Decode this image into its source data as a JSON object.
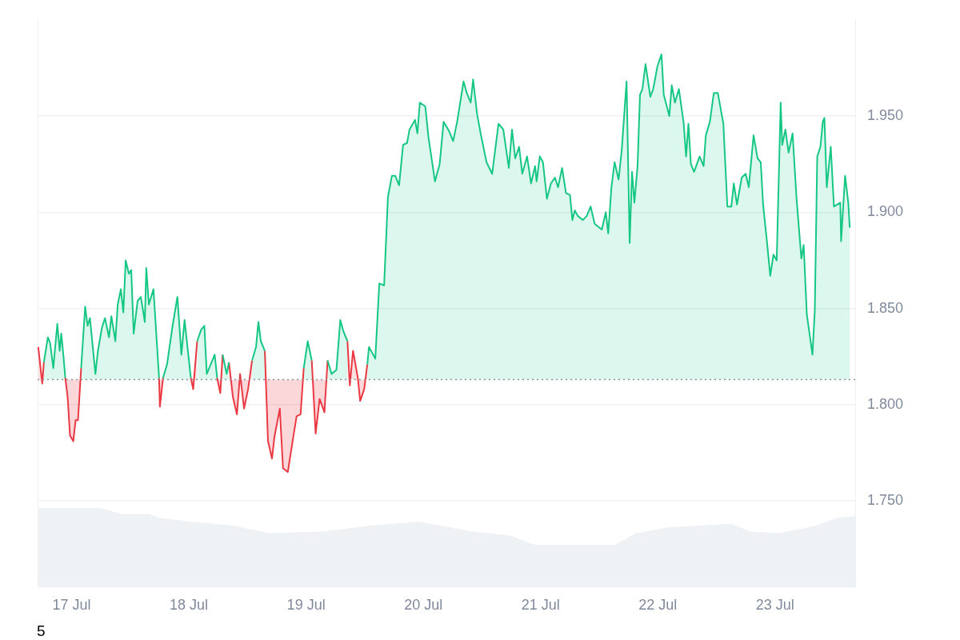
{
  "chart_data": {
    "type": "area",
    "xlim": [
      "--07-16T17:02",
      "--07-23T16:34"
    ],
    "xticks": [
      {
        "value": "--07-17",
        "label": "17 Jul"
      },
      {
        "value": "--07-18",
        "label": "18 Jul"
      },
      {
        "value": "--07-19",
        "label": "19 Jul"
      },
      {
        "value": "--07-20",
        "label": "20 Jul"
      },
      {
        "value": "--07-21",
        "label": "21 Jul"
      },
      {
        "value": "--07-22",
        "label": "22 Jul"
      },
      {
        "value": "--07-23",
        "label": "23 Jul"
      }
    ],
    "ylim": [
      1.705,
      2.0
    ],
    "yticks": [
      {
        "value": 1.75,
        "label": "1.750"
      },
      {
        "value": 1.8,
        "label": "1.800"
      },
      {
        "value": 1.85,
        "label": "1.850"
      },
      {
        "value": 1.9,
        "label": "1.900"
      },
      {
        "value": 1.95,
        "label": "1.950"
      }
    ],
    "grid": "y",
    "legend": false,
    "ref_lines": [
      {
        "axis": "y",
        "value": 1.813,
        "color": "#8a8f99",
        "line_style": "dotted"
      }
    ],
    "annotations": [
      "5"
    ],
    "x": [
      "--07-16T17:10",
      "--07-16T17:59",
      "--07-16T18:19",
      "--07-16T19:08",
      "--07-16T19:36",
      "--07-16T20:15",
      "--07-16T21:04",
      "--07-16T21:33",
      "--07-16T21:53",
      "--07-16T22:22",
      "--07-16T22:42",
      "--07-16T23:11",
      "--07-16T23:40",
      "--07-17T00:20",
      "--07-17T00:49",
      "--07-17T01:18",
      "--07-17T01:57",
      "--07-17T02:46",
      "--07-17T03:16",
      "--07-17T03:45",
      "--07-17T04:52",
      "--07-17T05:23",
      "--07-17T06:12",
      "--07-17T06:50",
      "--07-17T07:39",
      "--07-17T08:08",
      "--07-17T08:57",
      "--07-17T09:26",
      "--07-17T10:05",
      "--07-17T10:35",
      "--07-17T11:04",
      "--07-17T11:43",
      "--07-17T12:12",
      "--07-17T12:42",
      "--07-17T13:31",
      "--07-17T14:10",
      "--07-17T14:59",
      "--07-17T15:17",
      "--07-17T15:48",
      "--07-17T16:45",
      "--07-17T17:54",
      "--07-17T18:04",
      "--07-17T18:43",
      "--07-17T19:32",
      "--07-17T20:40",
      "--07-17T21:39",
      "--07-17T22:28",
      "--07-17T23:07",
      "--07-18T00:24",
      "--07-18T00:53",
      "--07-18T01:42",
      "--07-18T02:31",
      "--07-18T03:10",
      "--07-18T03:40",
      "--07-18T04:48",
      "--07-18T05:17",
      "--07-18T05:47",
      "--07-18T06:26",
      "--07-18T06:55",
      "--07-18T07:44",
      "--07-18T08:12",
      "--07-18T09:01",
      "--07-18T09:50",
      "--07-18T10:29",
      "--07-18T11:18",
      "--07-18T12:07",
      "--07-18T12:56",
      "--07-18T13:45",
      "--07-18T14:14",
      "--07-18T14:44",
      "--07-18T15:33",
      "--07-18T16:12",
      "--07-18T17:01",
      "--07-18T17:30",
      "--07-18T18:37",
      "--07-18T19:16",
      "--07-18T20:15",
      "--07-18T21:14",
      "--07-18T22:03",
      "--07-18T22:52",
      "--07-18T23:31",
      "--07-19T00:20",
      "--07-19T01:09",
      "--07-19T01:57",
      "--07-19T02:46",
      "--07-19T03:45",
      "--07-19T04:24",
      "--07-19T05:12",
      "--07-19T06:12",
      "--07-19T07:00",
      "--07-19T07:39",
      "--07-19T08:28",
      "--07-19T08:57",
      "--07-19T09:36",
      "--07-19T10:35",
      "--07-19T11:04",
      "--07-19T11:53",
      "--07-19T12:32",
      "--07-19T12:52",
      "--07-19T14:10",
      "--07-19T14:59",
      "--07-19T15:58",
      "--07-19T16:45",
      "--07-19T17:34",
      "--07-19T18:14",
      "--07-19T19:02",
      "--07-19T19:51",
      "--07-19T20:40",
      "--07-19T21:10",
      "--07-19T22:18",
      "--07-19T22:47",
      "--07-19T23:17",
      "--07-20T00:24",
      "--07-20T01:03",
      "--07-20T02:23",
      "--07-20T03:20",
      "--07-20T04:09",
      "--07-20T05:18",
      "--07-20T06:06",
      "--07-20T06:55",
      "--07-20T08:14",
      "--07-20T08:53",
      "--07-20T09:42",
      "--07-20T10:11",
      "--07-20T11:00",
      "--07-20T11:48",
      "--07-20T12:56",
      "--07-20T14:05",
      "--07-20T15:23",
      "--07-20T16:22",
      "--07-20T17:30",
      "--07-20T18:09",
      "--07-20T18:48",
      "--07-20T19:36",
      "--07-20T20:15",
      "--07-20T21:14",
      "--07-20T22:03",
      "--07-20T22:52",
      "--07-20T23:11",
      "--07-20T23:50",
      "--07-21T00:29",
      "--07-21T01:18",
      "--07-21T02:07",
      "--07-21T02:56",
      "--07-21T03:35",
      "--07-21T04:24",
      "--07-21T05:12",
      "--07-21T06:01",
      "--07-21T06:30",
      "--07-21T07:00",
      "--07-21T07:39",
      "--07-21T08:38",
      "--07-21T09:26",
      "--07-21T10:15",
      "--07-21T11:04",
      "--07-21T12:32",
      "--07-21T13:21",
      "--07-21T13:51",
      "--07-21T14:30",
      "--07-21T15:09",
      "--07-21T15:58",
      "--07-21T16:36",
      "--07-21T17:36",
      "--07-21T18:14",
      "--07-21T18:43",
      "--07-21T19:12",
      "--07-21T19:51",
      "--07-21T20:21",
      "--07-21T20:50",
      "--07-21T21:29",
      "--07-21T22:28",
      "--07-21T23:03",
      "--07-21T23:56",
      "--07-22T00:45",
      "--07-22T01:13",
      "--07-22T02:21",
      "--07-22T02:51",
      "--07-22T03:30",
      "--07-22T04:19",
      "--07-22T05:18",
      "--07-22T05:47",
      "--07-22T06:16",
      "--07-22T06:46",
      "--07-22T07:25",
      "--07-22T08:33",
      "--07-22T09:22",
      "--07-22T09:50",
      "--07-22T10:39",
      "--07-22T11:28",
      "--07-22T12:17",
      "--07-22T13:25",
      "--07-22T14:14",
      "--07-22T15:03",
      "--07-22T15:33",
      "--07-22T16:12",
      "--07-22T17:10",
      "--07-22T17:59",
      "--07-22T18:37",
      "--07-22T19:36",
      "--07-22T20:25",
      "--07-22T21:04",
      "--07-22T21:33",
      "--07-22T22:22",
      "--07-22T23:01",
      "--07-22T23:40",
      "--07-23T00:20",
      "--07-23T01:09",
      "--07-23T01:28",
      "--07-23T02:07",
      "--07-23T02:46",
      "--07-23T03:35",
      "--07-23T04:24",
      "--07-23T05:23",
      "--07-23T05:51",
      "--07-23T06:30",
      "--07-23T07:39",
      "--07-23T08:08",
      "--07-23T08:38",
      "--07-23T09:17",
      "--07-23T09:46",
      "--07-23T10:06",
      "--07-23T10:35",
      "--07-23T11:24",
      "--07-23T12:03",
      "--07-23T13:21",
      "--07-23T13:31",
      "--07-23T14:20",
      "--07-23T14:59",
      "--07-23T15:17"
    ],
    "series": [
      {
        "color": "#eff2f5",
        "x": [
          "--07-16T17:02",
          "--07-17T06:01",
          "--07-17T10:15",
          "--07-17T15:48",
          "--07-17T17:54",
          "--07-18T00:24",
          "--07-18T09:01",
          "--07-18T16:41",
          "--07-19T03:35",
          "--07-19T13:21",
          "--07-19T23:07",
          "--07-20T09:50",
          "--07-20T17:30",
          "--07-20T22:52",
          "--07-21T15:09",
          "--07-21T19:32",
          "--07-22T02:02",
          "--07-22T15:03",
          "--07-22T18:48",
          "--07-23T00:49",
          "--07-23T08:28",
          "--07-23T12:42",
          "--07-23T16:34"
        ],
        "values": [
          1.746,
          1.746,
          1.743,
          1.743,
          1.741,
          1.739,
          1.737,
          1.733,
          1.734,
          1.737,
          1.739,
          1.734,
          1.732,
          1.727,
          1.727,
          1.733,
          1.736,
          1.738,
          1.734,
          1.733,
          1.737,
          1.741,
          1.742
        ]
      },
      {
        "color": "#16c784",
        "values": [
          null,
          null,
          1.822,
          1.835,
          1.832,
          1.819,
          1.842,
          1.828,
          1.837,
          1.824,
          1.814,
          null,
          null,
          null,
          null,
          null,
          1.819,
          1.851,
          1.841,
          1.845,
          1.816,
          1.828,
          1.84,
          1.845,
          1.835,
          1.846,
          1.833,
          1.852,
          1.86,
          1.848,
          1.875,
          1.868,
          1.87,
          1.837,
          1.854,
          1.856,
          1.843,
          1.871,
          1.852,
          1.86,
          1.814,
          null,
          1.814,
          1.821,
          1.841,
          1.856,
          1.826,
          1.844,
          1.814,
          null,
          1.833,
          1.839,
          1.841,
          1.816,
          1.823,
          1.826,
          1.814,
          null,
          1.826,
          1.816,
          1.822,
          null,
          null,
          null,
          null,
          null,
          1.823,
          1.83,
          1.843,
          1.833,
          1.828,
          null,
          null,
          null,
          null,
          null,
          null,
          null,
          null,
          null,
          1.819,
          1.833,
          1.823,
          null,
          null,
          null,
          1.823,
          1.816,
          1.818,
          1.844,
          1.838,
          1.833,
          null,
          null,
          null,
          null,
          null,
          1.821,
          1.83,
          1.824,
          1.863,
          1.862,
          1.908,
          1.919,
          1.919,
          1.914,
          1.935,
          1.936,
          1.943,
          1.948,
          1.941,
          1.957,
          1.955,
          1.939,
          1.916,
          1.925,
          1.947,
          1.942,
          1.937,
          1.947,
          1.968,
          1.962,
          1.957,
          1.969,
          1.951,
          1.94,
          1.926,
          1.92,
          1.946,
          1.943,
          1.923,
          1.943,
          1.928,
          1.934,
          1.92,
          1.929,
          1.915,
          1.924,
          1.916,
          1.929,
          1.926,
          1.907,
          1.915,
          1.918,
          1.913,
          1.923,
          1.91,
          1.909,
          1.896,
          1.901,
          1.898,
          1.896,
          1.898,
          1.903,
          1.894,
          1.891,
          1.9,
          1.889,
          1.913,
          1.926,
          1.917,
          1.932,
          1.968,
          1.884,
          1.921,
          1.905,
          1.924,
          1.961,
          1.964,
          1.977,
          1.96,
          1.964,
          1.976,
          1.982,
          1.961,
          1.95,
          1.966,
          1.957,
          1.964,
          1.946,
          1.929,
          1.946,
          1.925,
          1.921,
          1.929,
          1.924,
          1.94,
          1.947,
          1.962,
          1.962,
          1.946,
          1.903,
          1.903,
          1.915,
          1.904,
          1.918,
          1.92,
          1.913,
          1.94,
          1.928,
          1.926,
          1.904,
          1.884,
          1.867,
          1.878,
          1.875,
          1.957,
          1.935,
          1.943,
          1.931,
          1.941,
          1.907,
          1.876,
          1.883,
          1.847,
          1.826,
          1.849,
          1.929,
          1.934,
          1.947,
          1.949,
          1.913,
          1.934,
          1.903,
          1.905,
          1.885,
          1.919,
          1.905,
          1.892
        ]
      },
      {
        "color": "#ea3943",
        "values": [
          1.83,
          1.811,
          1.822,
          null,
          null,
          null,
          null,
          null,
          null,
          null,
          1.814,
          1.804,
          1.784,
          1.781,
          1.792,
          1.792,
          1.819,
          null,
          null,
          null,
          null,
          null,
          null,
          null,
          null,
          null,
          null,
          null,
          null,
          null,
          null,
          null,
          null,
          null,
          null,
          null,
          null,
          null,
          null,
          null,
          1.814,
          1.799,
          1.814,
          null,
          null,
          null,
          null,
          null,
          1.814,
          1.808,
          1.833,
          null,
          null,
          null,
          null,
          null,
          1.814,
          1.806,
          1.826,
          null,
          1.822,
          1.804,
          1.795,
          1.816,
          1.798,
          1.808,
          1.823,
          null,
          null,
          null,
          1.828,
          1.781,
          1.772,
          1.783,
          1.798,
          1.767,
          1.765,
          1.781,
          1.794,
          1.795,
          1.819,
          null,
          1.823,
          1.785,
          1.803,
          1.796,
          1.823,
          null,
          null,
          null,
          null,
          1.833,
          1.81,
          1.828,
          1.814,
          1.802,
          1.808,
          1.821,
          null,
          null,
          null,
          null,
          null,
          null,
          null,
          null,
          null,
          null,
          null,
          null,
          null,
          null,
          null,
          null,
          null,
          null,
          null,
          null,
          null,
          null,
          null,
          null,
          null,
          null,
          null,
          null,
          null,
          null,
          null,
          null,
          null,
          null,
          null,
          null,
          null,
          null,
          null,
          null,
          null,
          null,
          null,
          null,
          null,
          null,
          null,
          null,
          null,
          null,
          null,
          null,
          null,
          null,
          null,
          null,
          null,
          null,
          null,
          null,
          null,
          null,
          null,
          null,
          null,
          null,
          null,
          null,
          null,
          null,
          null,
          null,
          null,
          null,
          null,
          null,
          null,
          null,
          null,
          null,
          null,
          null,
          null,
          null,
          null,
          null,
          null,
          null,
          null,
          null,
          null,
          null,
          null,
          null,
          null,
          null,
          null,
          null,
          null,
          null,
          null,
          null,
          null,
          null,
          null,
          null,
          null,
          null,
          null,
          null,
          null,
          null,
          null,
          null,
          null,
          null,
          null,
          null,
          null,
          null,
          null,
          null,
          null,
          null,
          null,
          null,
          null,
          null,
          null,
          null,
          null
        ]
      }
    ]
  }
}
